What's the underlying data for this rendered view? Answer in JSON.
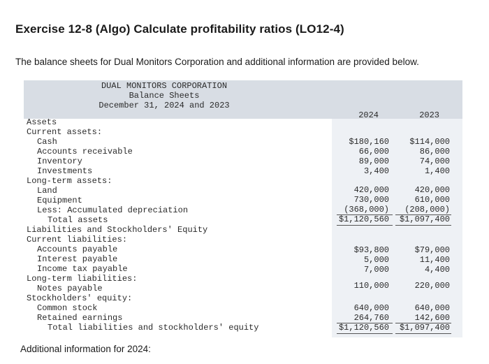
{
  "heading": "Exercise 12-8 (Algo) Calculate profitability ratios (LO12-4)",
  "intro": "The balance sheets for Dual Monitors Corporation and additional information are provided below.",
  "sheet": {
    "company": "DUAL MONITORS CORPORATION",
    "title": "Balance Sheets",
    "date": "December 31, 2024 and 2023",
    "year1": "2024",
    "year2": "2023",
    "rows": [
      {
        "label": "Assets",
        "indent": 0,
        "v1": "",
        "v2": ""
      },
      {
        "label": "Current assets:",
        "indent": 0,
        "v1": "",
        "v2": ""
      },
      {
        "label": "Cash",
        "indent": 1,
        "v1": "$180,160",
        "v2": "$114,000"
      },
      {
        "label": "Accounts receivable",
        "indent": 1,
        "v1": "66,000",
        "v2": "86,000"
      },
      {
        "label": "Inventory",
        "indent": 1,
        "v1": "89,000",
        "v2": "74,000"
      },
      {
        "label": "Investments",
        "indent": 1,
        "v1": "3,400",
        "v2": "1,400"
      },
      {
        "label": "Long-term assets:",
        "indent": 0,
        "v1": "",
        "v2": ""
      },
      {
        "label": "Land",
        "indent": 1,
        "v1": "420,000",
        "v2": "420,000"
      },
      {
        "label": "Equipment",
        "indent": 1,
        "v1": "730,000",
        "v2": "610,000"
      },
      {
        "label": "Less: Accumulated depreciation",
        "indent": 1,
        "v1": "(368,000)",
        "v2": "(208,000)"
      },
      {
        "label": "Total assets",
        "indent": 2,
        "v1": "$1,120,560",
        "v2": "$1,097,400"
      },
      {
        "label": "Liabilities and Stockholders' Equity",
        "indent": 0,
        "v1": "",
        "v2": ""
      },
      {
        "label": "Current liabilities:",
        "indent": 0,
        "v1": "",
        "v2": ""
      },
      {
        "label": "Accounts payable",
        "indent": 1,
        "v1": "$93,800",
        "v2": "$79,000"
      },
      {
        "label": "Interest payable",
        "indent": 1,
        "v1": "5,000",
        "v2": "11,400"
      },
      {
        "label": "Income tax payable",
        "indent": 1,
        "v1": "7,000",
        "v2": "4,400"
      },
      {
        "label": "Long-term liabilities:",
        "indent": 0,
        "v1": "",
        "v2": ""
      },
      {
        "label": "Notes payable",
        "indent": 1,
        "v1": "110,000",
        "v2": "220,000"
      },
      {
        "label": "Stockholders' equity:",
        "indent": 0,
        "v1": "",
        "v2": ""
      },
      {
        "label": "Common stock",
        "indent": 1,
        "v1": "640,000",
        "v2": "640,000"
      },
      {
        "label": "Retained earnings",
        "indent": 1,
        "v1": "264,760",
        "v2": "142,600"
      },
      {
        "label": "Total liabilities and stockholders' equity",
        "indent": 2,
        "v1": "$1,120,560",
        "v2": "$1,097,400"
      }
    ]
  },
  "additional": "Additional information for 2024:"
}
